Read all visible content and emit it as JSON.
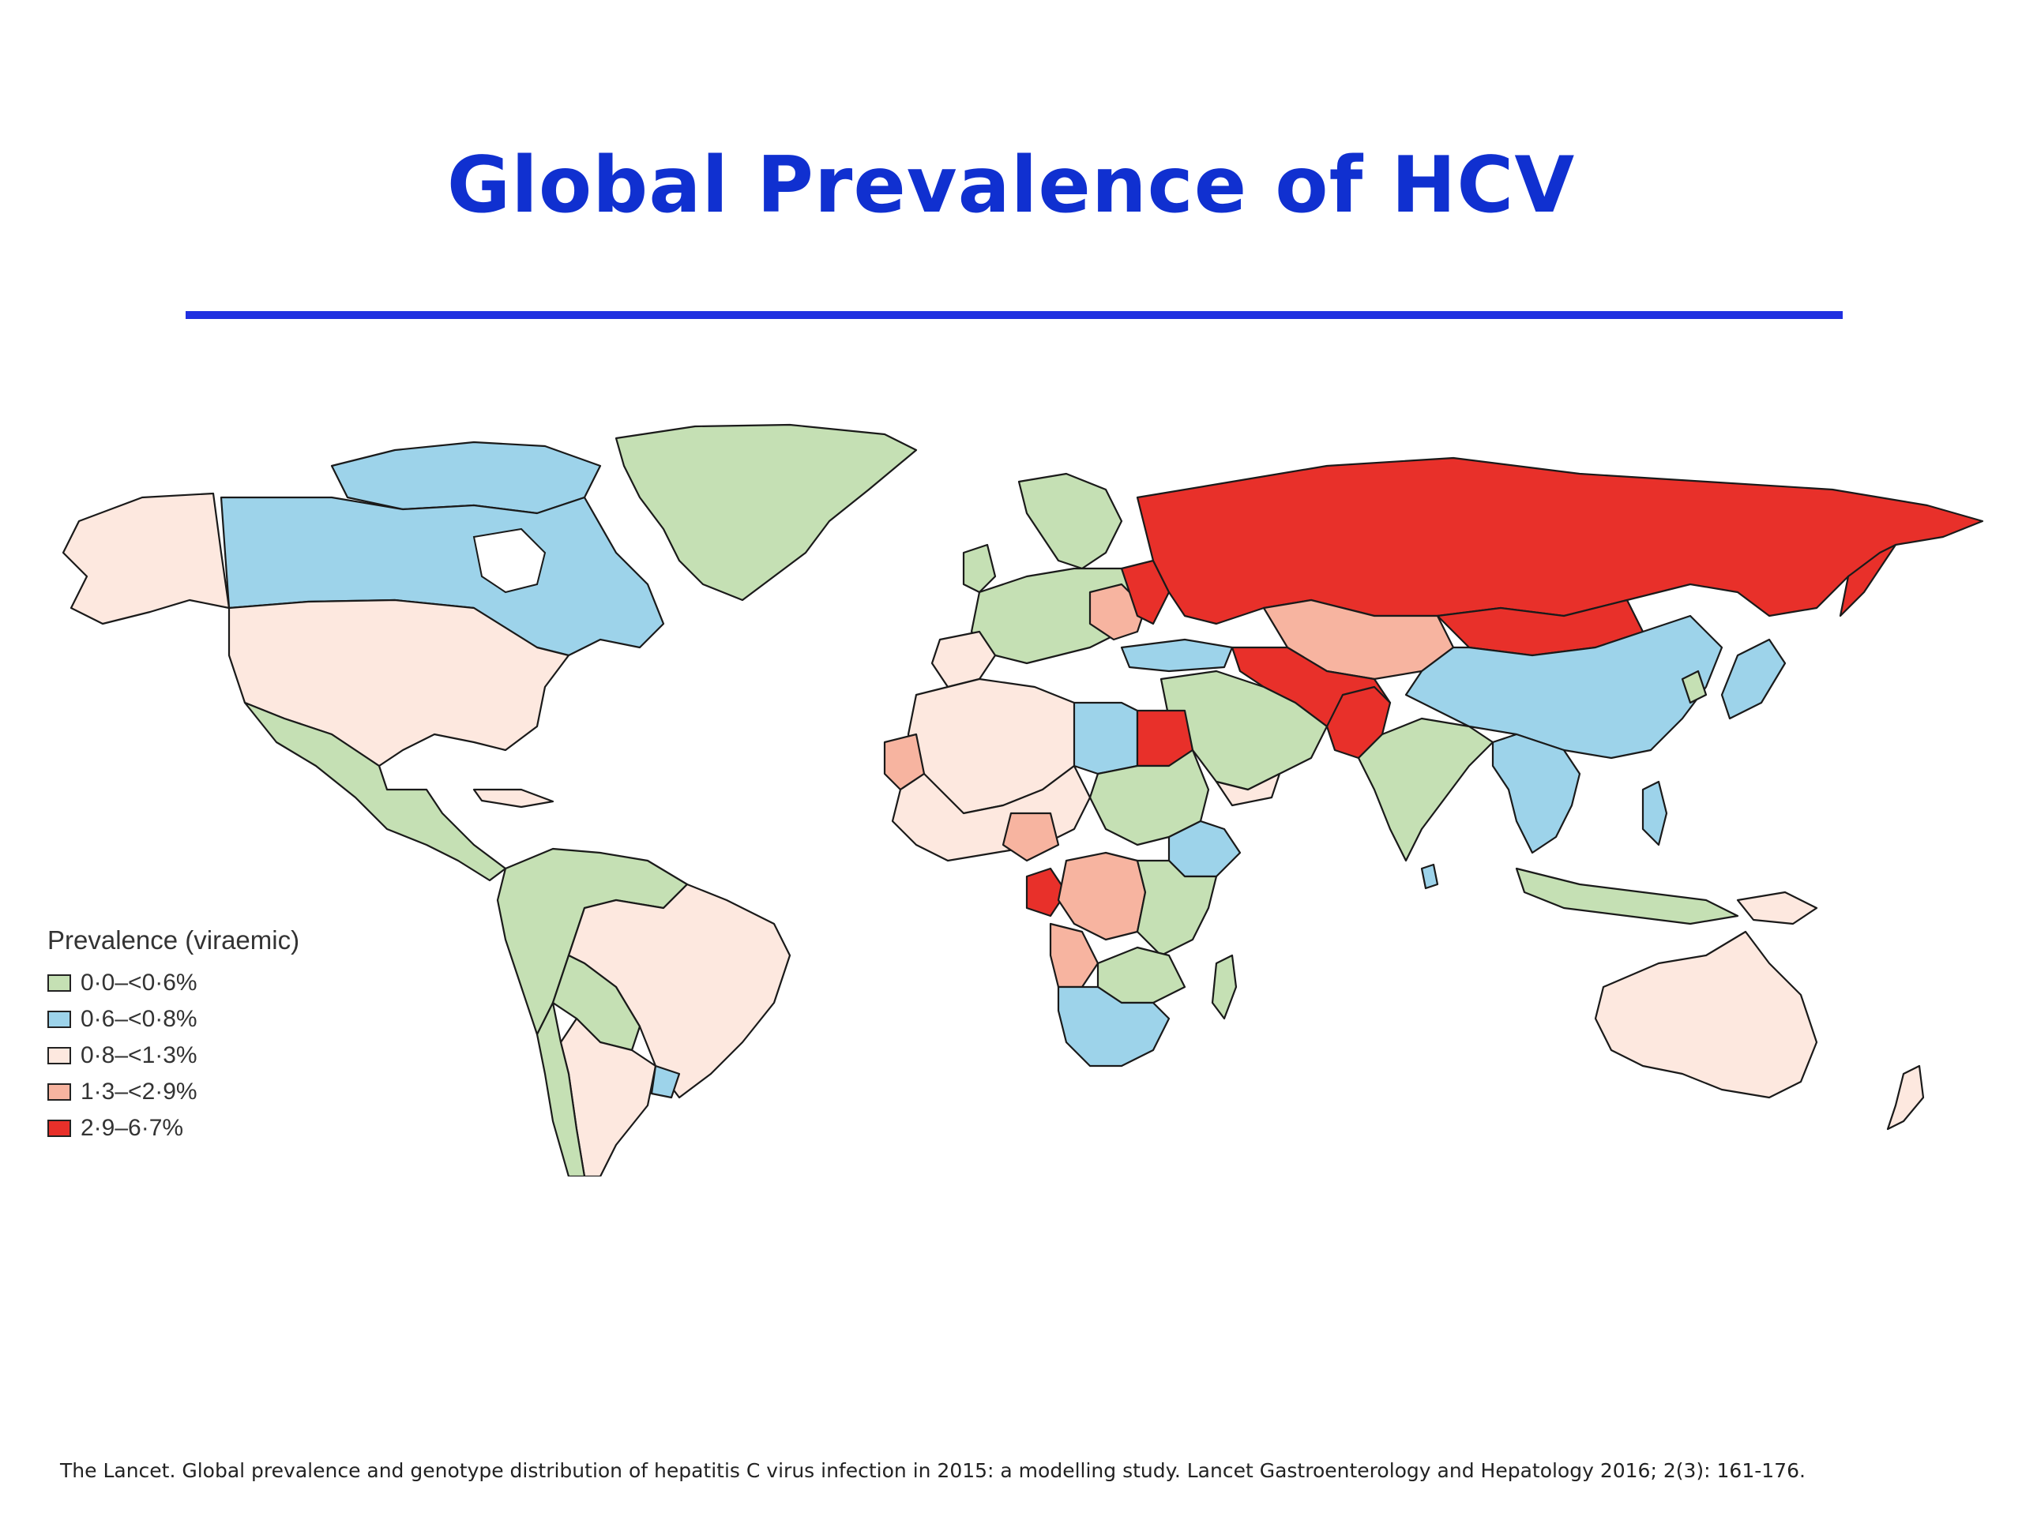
{
  "slide": {
    "title": "Global Prevalence of HCV",
    "citation": "The Lancet. Global prevalence and genotype distribution of hepatitis C virus infection in 2015: a modelling study. Lancet Gastroenterology and Hepatology 2016; 2(3): 161-176."
  },
  "legend": {
    "title": "Prevalence (viraemic)",
    "items": [
      {
        "label": "0·0–<0·6%",
        "color": "#c5e0b4"
      },
      {
        "label": "0·6–<0·8%",
        "color": "#9dd3ea"
      },
      {
        "label": "0·8–<1·3%",
        "color": "#fde8df"
      },
      {
        "label": "1·3–<2·9%",
        "color": "#f7b4a0"
      },
      {
        "label": "2·9–6·7%",
        "color": "#e8302a"
      }
    ]
  },
  "colors": {
    "title": "#1030d0",
    "rule": "#2030e0"
  }
}
